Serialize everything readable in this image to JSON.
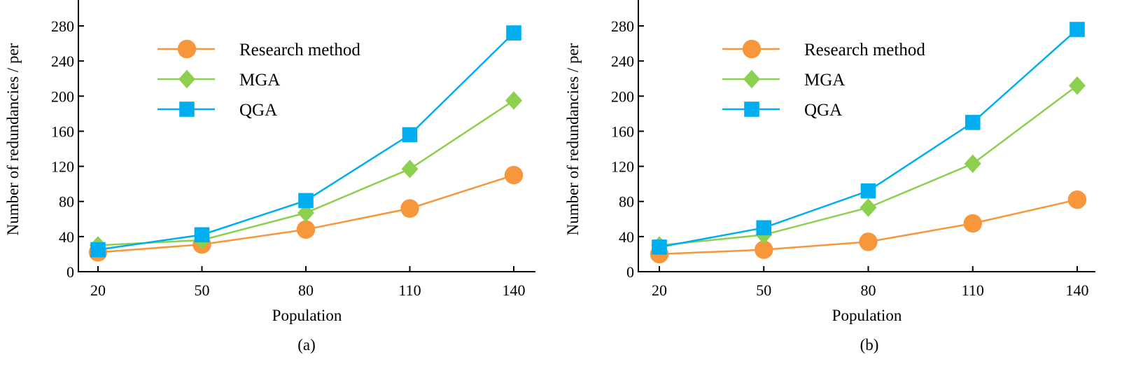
{
  "chart_data": [
    {
      "type": "line",
      "caption": "(a)",
      "xlabel": "Population",
      "ylabel": "Number of redundancies / per",
      "x": [
        20,
        50,
        80,
        110,
        140
      ],
      "xticks": [
        "20",
        "50",
        "80",
        "110",
        "140"
      ],
      "yticks": [
        "0",
        "40",
        "80",
        "120",
        "160",
        "200",
        "240",
        "280"
      ],
      "ylim": [
        0,
        300
      ],
      "grid": false,
      "legend_position": "top-left",
      "series": [
        {
          "name": "Research method",
          "color": "#F7963A",
          "marker": "circle",
          "values": [
            22,
            31,
            48,
            72,
            110
          ]
        },
        {
          "name": "MGA",
          "color": "#8DCF4F",
          "marker": "diamond",
          "values": [
            30,
            36,
            67,
            117,
            195
          ]
        },
        {
          "name": "QGA",
          "color": "#00AEEF",
          "marker": "square",
          "values": [
            25,
            42,
            81,
            156,
            272
          ]
        }
      ]
    },
    {
      "type": "line",
      "caption": "(b)",
      "xlabel": "Population",
      "ylabel": "Number of redundancies / per",
      "x": [
        20,
        50,
        80,
        110,
        140
      ],
      "xticks": [
        "20",
        "50",
        "80",
        "110",
        "140"
      ],
      "yticks": [
        "0",
        "40",
        "80",
        "120",
        "160",
        "200",
        "240",
        "280"
      ],
      "ylim": [
        0,
        300
      ],
      "grid": false,
      "legend_position": "top-left",
      "series": [
        {
          "name": "Research method",
          "color": "#F7963A",
          "marker": "circle",
          "values": [
            20,
            25,
            34,
            55,
            82
          ]
        },
        {
          "name": "MGA",
          "color": "#8DCF4F",
          "marker": "diamond",
          "values": [
            30,
            42,
            73,
            123,
            212
          ]
        },
        {
          "name": "QGA",
          "color": "#00AEEF",
          "marker": "square",
          "values": [
            28,
            50,
            92,
            170,
            276
          ]
        }
      ]
    }
  ]
}
